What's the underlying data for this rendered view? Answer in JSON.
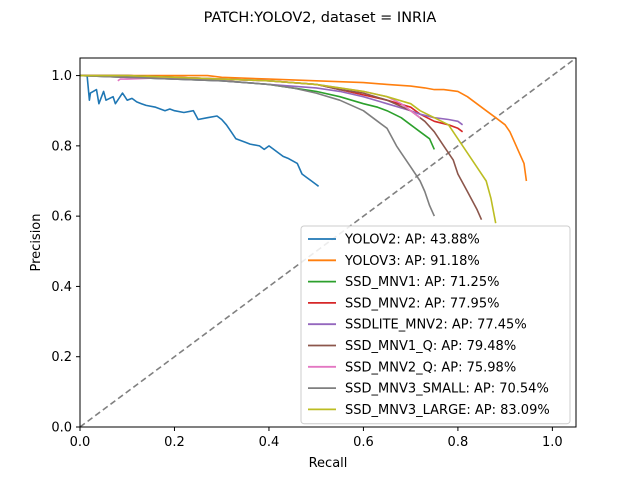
{
  "chart_data": {
    "type": "line",
    "title": "PATCH:YOLOV2, dataset = INRIA",
    "xlabel": "Recall",
    "ylabel": "Precision",
    "xlim": [
      0,
      1.05
    ],
    "ylim": [
      0,
      1.05
    ],
    "xticks": [
      0.0,
      0.2,
      0.4,
      0.6,
      0.8,
      1.0
    ],
    "yticks": [
      0.0,
      0.2,
      0.4,
      0.6,
      0.8,
      1.0
    ],
    "xtick_labels": [
      "0.0",
      "0.2",
      "0.4",
      "0.6",
      "0.8",
      "1.0"
    ],
    "ytick_labels": [
      "0.0",
      "0.2",
      "0.4",
      "0.6",
      "0.8",
      "1.0"
    ],
    "grid": false,
    "legend_position": "lower-right",
    "reference_line": {
      "x": [
        0,
        1.05
      ],
      "y": [
        0,
        1.05
      ],
      "color": "#808080",
      "style": "dashed"
    },
    "series": [
      {
        "name": "YOLOV2: AP: 43.88%",
        "color": "#1f77b4",
        "x": [
          0.0,
          0.015,
          0.02,
          0.022,
          0.035,
          0.04,
          0.05,
          0.055,
          0.07,
          0.075,
          0.09,
          0.095,
          0.1,
          0.11,
          0.12,
          0.13,
          0.14,
          0.16,
          0.18,
          0.19,
          0.2,
          0.22,
          0.24,
          0.25,
          0.27,
          0.29,
          0.3,
          0.31,
          0.32,
          0.33,
          0.35,
          0.36,
          0.38,
          0.39,
          0.4,
          0.42,
          0.43,
          0.44,
          0.46,
          0.47,
          0.48,
          0.49,
          0.5,
          0.505
        ],
        "y": [
          1.0,
          1.0,
          0.93,
          0.95,
          0.96,
          0.92,
          0.955,
          0.93,
          0.94,
          0.92,
          0.95,
          0.94,
          0.93,
          0.935,
          0.925,
          0.92,
          0.915,
          0.91,
          0.9,
          0.905,
          0.9,
          0.895,
          0.9,
          0.875,
          0.88,
          0.885,
          0.875,
          0.86,
          0.84,
          0.82,
          0.81,
          0.805,
          0.8,
          0.79,
          0.8,
          0.78,
          0.77,
          0.765,
          0.75,
          0.72,
          0.71,
          0.7,
          0.69,
          0.685
        ]
      },
      {
        "name": "YOLOV3: AP: 91.18%",
        "color": "#ff7f0e",
        "x": [
          0.0,
          0.1,
          0.2,
          0.27,
          0.3,
          0.4,
          0.5,
          0.6,
          0.65,
          0.7,
          0.73,
          0.75,
          0.77,
          0.8,
          0.82,
          0.84,
          0.86,
          0.88,
          0.9,
          0.91,
          0.92,
          0.93,
          0.94,
          0.945
        ],
        "y": [
          1.0,
          1.0,
          1.0,
          1.0,
          0.995,
          0.99,
          0.985,
          0.98,
          0.975,
          0.97,
          0.965,
          0.96,
          0.96,
          0.955,
          0.94,
          0.92,
          0.9,
          0.88,
          0.86,
          0.84,
          0.81,
          0.78,
          0.75,
          0.7
        ]
      },
      {
        "name": "SSD_MNV1: AP: 71.25%",
        "color": "#2ca02c",
        "x": [
          0.0,
          0.1,
          0.2,
          0.3,
          0.35,
          0.4,
          0.45,
          0.5,
          0.55,
          0.6,
          0.63,
          0.65,
          0.68,
          0.7,
          0.72,
          0.74,
          0.75
        ],
        "y": [
          1.0,
          0.995,
          0.99,
          0.985,
          0.98,
          0.975,
          0.965,
          0.955,
          0.94,
          0.92,
          0.91,
          0.9,
          0.88,
          0.86,
          0.84,
          0.82,
          0.79
        ]
      },
      {
        "name": "SSD_MNV2: AP: 77.95%",
        "color": "#d62728",
        "x": [
          0.0,
          0.1,
          0.2,
          0.3,
          0.4,
          0.5,
          0.55,
          0.6,
          0.65,
          0.7,
          0.72,
          0.75,
          0.78,
          0.8,
          0.81
        ],
        "y": [
          1.0,
          1.0,
          0.995,
          0.99,
          0.985,
          0.975,
          0.96,
          0.945,
          0.93,
          0.91,
          0.89,
          0.87,
          0.86,
          0.85,
          0.84
        ]
      },
      {
        "name": "SSDLITE_MNV2: AP: 77.45%",
        "color": "#9467bd",
        "x": [
          0.0,
          0.1,
          0.2,
          0.3,
          0.4,
          0.5,
          0.55,
          0.6,
          0.65,
          0.7,
          0.72,
          0.75,
          0.78,
          0.8,
          0.81
        ],
        "y": [
          1.0,
          0.995,
          0.99,
          0.985,
          0.975,
          0.965,
          0.955,
          0.94,
          0.92,
          0.9,
          0.89,
          0.88,
          0.875,
          0.87,
          0.86
        ]
      },
      {
        "name": "SSD_MNV1_Q: AP: 79.48%",
        "color": "#8c564b",
        "x": [
          0.0,
          0.1,
          0.2,
          0.3,
          0.4,
          0.5,
          0.55,
          0.6,
          0.65,
          0.7,
          0.73,
          0.75,
          0.77,
          0.79,
          0.8,
          0.82,
          0.84,
          0.85
        ],
        "y": [
          1.0,
          1.0,
          0.995,
          0.99,
          0.985,
          0.975,
          0.96,
          0.95,
          0.93,
          0.9,
          0.87,
          0.84,
          0.8,
          0.76,
          0.72,
          0.67,
          0.62,
          0.59
        ]
      },
      {
        "name": "SSD_MNV2_Q: AP: 75.98%",
        "color": "#e377c2",
        "x": [
          0.08,
          0.085,
          0.1,
          0.2,
          0.3,
          0.4,
          0.5,
          0.55,
          0.6,
          0.65,
          0.68,
          0.7,
          0.72
        ],
        "y": [
          0.985,
          0.99,
          0.99,
          0.995,
          0.99,
          0.985,
          0.975,
          0.965,
          0.955,
          0.94,
          0.92,
          0.9,
          0.88
        ]
      },
      {
        "name": "SSD_MNV3_SMALL: AP: 70.54%",
        "color": "#7f7f7f",
        "x": [
          0.0,
          0.1,
          0.2,
          0.3,
          0.4,
          0.45,
          0.5,
          0.55,
          0.6,
          0.63,
          0.65,
          0.67,
          0.68,
          0.7,
          0.72,
          0.73,
          0.74,
          0.75
        ],
        "y": [
          1.0,
          0.995,
          0.99,
          0.985,
          0.975,
          0.965,
          0.95,
          0.93,
          0.9,
          0.87,
          0.85,
          0.8,
          0.78,
          0.74,
          0.7,
          0.67,
          0.63,
          0.6
        ]
      },
      {
        "name": "SSD_MNV3_LARGE: AP: 83.09%",
        "color": "#bcbd22",
        "x": [
          0.0,
          0.1,
          0.2,
          0.3,
          0.4,
          0.5,
          0.55,
          0.6,
          0.65,
          0.7,
          0.72,
          0.75,
          0.78,
          0.8,
          0.82,
          0.84,
          0.86,
          0.87,
          0.88
        ],
        "y": [
          1.0,
          1.0,
          0.995,
          0.99,
          0.985,
          0.975,
          0.965,
          0.955,
          0.94,
          0.92,
          0.9,
          0.88,
          0.86,
          0.82,
          0.78,
          0.74,
          0.7,
          0.65,
          0.58
        ]
      }
    ]
  }
}
